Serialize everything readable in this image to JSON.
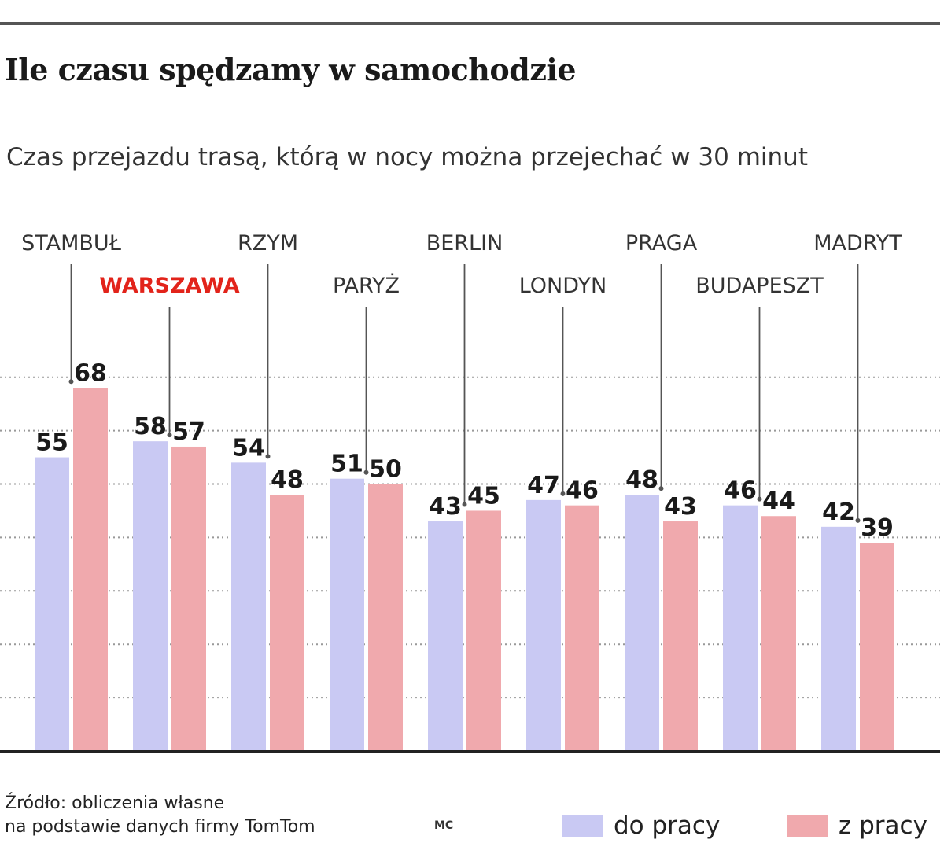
{
  "header": {
    "title": "Ile czasu spędzamy w samochodzie",
    "subtitle": "Czas przejazdu trasą, którą w nocy można przejechać w 30 minut"
  },
  "footer": {
    "source_line1": "Źródło: obliczenia własne",
    "source_line2": "na podstawie danych firmy TomTom",
    "author": "MC"
  },
  "colors": {
    "do_pracy": "#c9c9f3",
    "z_pracy": "#f0a9ad",
    "highlight": "#e2231a",
    "label": "#333333",
    "axis": "#222222",
    "grid": "#999999"
  },
  "chart_data": {
    "type": "bar",
    "title": "Ile czasu spędzamy w samochodzie",
    "subtitle": "Czas przejazdu trasą, którą w nocy można przejechać w 30 minut",
    "categories": [
      "STAMBUŁ",
      "WARSZAWA",
      "RZYM",
      "PARYŻ",
      "BERLIN",
      "LONDYN",
      "PRAGA",
      "BUDAPESZT",
      "MADRYT"
    ],
    "highlight_category": "WARSZAWA",
    "series": [
      {
        "name": "do pracy",
        "values": [
          55,
          58,
          54,
          51,
          43,
          47,
          48,
          46,
          42
        ]
      },
      {
        "name": "z pracy",
        "values": [
          68,
          57,
          48,
          50,
          45,
          46,
          43,
          44,
          39
        ]
      }
    ],
    "gridlines": [
      10,
      20,
      30,
      40,
      50,
      60,
      70
    ],
    "ylim": [
      0,
      70
    ],
    "grid": true,
    "legend_position": "bottom-right",
    "xlabel": "",
    "ylabel": ""
  }
}
